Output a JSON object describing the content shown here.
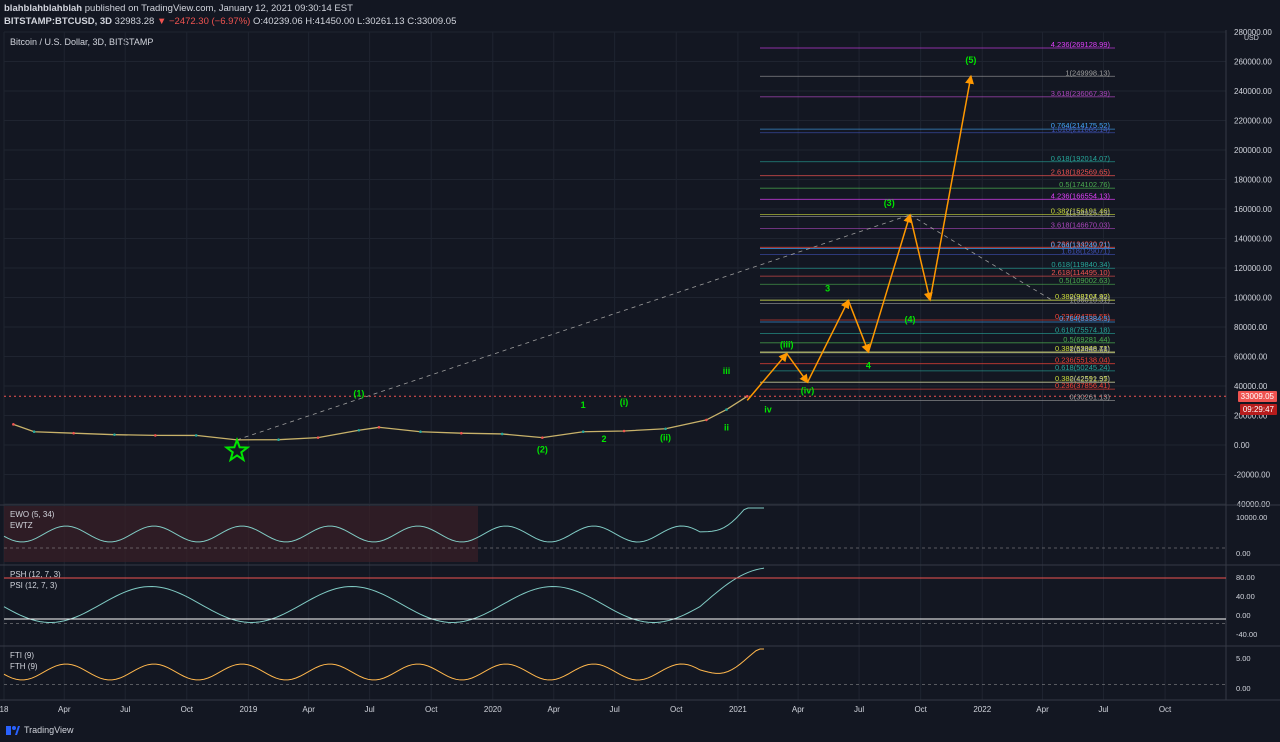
{
  "header": {
    "publisher": "blahblahblahblah",
    "published": "published on TradingView.com, January 12, 2021 09:30:14 EST",
    "symbol": "BITSTAMP:BTCUSD, 3D",
    "last": "32983.28",
    "change": "−2472.30 (−6.97%)",
    "o": "40239.06",
    "h": "41450.00",
    "l": "30261.13",
    "c": "33009.05"
  },
  "chart_title": "Bitcoin / U.S. Dollar, 3D, BITSTAMP",
  "currency": "USD",
  "price_tag": "33009.05",
  "time_tag": "09:29:47",
  "brand": "TradingView",
  "colors": {
    "bg": "#131722",
    "grid": "#1f2430",
    "up": "#26a69a",
    "down": "#ef5350",
    "wave": "#00e600",
    "arrow": "#ff9800"
  },
  "panes": [
    {
      "labels": [
        "EWO (5, 34)",
        "EWTZ"
      ],
      "ticks": [
        "10000.00",
        "0.00"
      ]
    },
    {
      "labels": [
        "PSH (12, 7, 3)",
        "PSI (12, 7, 3)"
      ],
      "ticks": [
        "80.00",
        "40.00",
        "0.00",
        "-40.00"
      ]
    },
    {
      "labels": [
        "FTI (9)",
        "FTH (9)"
      ],
      "ticks": [
        "5.00",
        "0.00"
      ]
    }
  ],
  "chart_data": {
    "type": "line",
    "ylabel": "USD",
    "ylim": [
      -40000,
      280000
    ],
    "yticks": [
      -40000,
      -20000,
      0,
      20000,
      40000,
      60000,
      80000,
      100000,
      120000,
      140000,
      160000,
      180000,
      200000,
      220000,
      240000,
      260000,
      280000
    ],
    "ytick_labels": [
      "-40000.00",
      "-20000.00",
      "0.00",
      "20000.00",
      "40000.00",
      "60000.00",
      "80000.00",
      "100000.00",
      "120000.00",
      "140000.00",
      "160000.00",
      "180000.00",
      "200000.00",
      "220000.00",
      "240000.00",
      "260000.00",
      "280000.00"
    ],
    "xtick_labels": [
      "18",
      "Apr",
      "Jul",
      "Oct",
      "2019",
      "Apr",
      "Jul",
      "Oct",
      "2020",
      "Apr",
      "Jul",
      "Oct",
      "2021",
      "Apr",
      "Jul",
      "Oct",
      "2022",
      "Apr",
      "Jul",
      "Oct"
    ],
    "price": {
      "x": [
        "2018-01",
        "2018-02",
        "2018-04",
        "2018-06",
        "2018-08",
        "2018-10",
        "2018-12",
        "2019-02",
        "2019-04",
        "2019-06",
        "2019-07",
        "2019-09",
        "2019-11",
        "2020-01",
        "2020-03",
        "2020-05",
        "2020-07",
        "2020-09",
        "2020-11",
        "2020-12",
        "2021-01"
      ],
      "y": [
        14000,
        9000,
        8000,
        7000,
        6500,
        6500,
        3500,
        3600,
        5000,
        10000,
        12000,
        9000,
        8000,
        7500,
        5000,
        9000,
        9500,
        11000,
        17000,
        24000,
        33009
      ]
    },
    "forecast_path": {
      "x": [
        "2021-01",
        "2021-03",
        "2021-04",
        "2021-06",
        "2021-07",
        "2021-09",
        "2021-10",
        "2021-12"
      ],
      "y": [
        30261,
        62000,
        42512,
        98000,
        63080,
        156000,
        98207,
        250000
      ]
    },
    "fib_levels": [
      {
        "label": "4.236(269128.99)",
        "value": 269129,
        "color": "#e040fb"
      },
      {
        "label": "1(249998.13)",
        "value": 249998,
        "color": "#9e9e9e"
      },
      {
        "label": "3.618(236067.39)",
        "value": 236067,
        "color": "#ab47bc"
      },
      {
        "label": "0.764(214175.52)",
        "value": 214176,
        "color": "#42a5f5"
      },
      {
        "label": "1.618(211685.14)",
        "value": 211685,
        "color": "#3f51b5"
      },
      {
        "label": "0.618(192014.07)",
        "value": 192014,
        "color": "#26a69a"
      },
      {
        "label": "2.618(182569.65)",
        "value": 182570,
        "color": "#ef5350"
      },
      {
        "label": "0.5(174102.76)",
        "value": 174103,
        "color": "#4caf50"
      },
      {
        "label": "4.236(166554.13)",
        "value": 166554,
        "color": "#e040fb"
      },
      {
        "label": "0.382(156191.46)",
        "value": 156191,
        "color": "#cddc39"
      },
      {
        "label": "1(154925.13)",
        "value": 154925,
        "color": "#9e9e9e"
      },
      {
        "label": "3.618(146670.03)",
        "value": 146670,
        "color": "#ab47bc"
      },
      {
        "label": "0.236(134030.01)",
        "value": 134030,
        "color": "#f44336"
      },
      {
        "label": "0.764(133249.71)",
        "value": 133250,
        "color": "#42a5f5"
      },
      {
        "label": "1.618(129071)",
        "value": 129071,
        "color": "#3f51b5"
      },
      {
        "label": "0.618(119840.34)",
        "value": 119840,
        "color": "#26a69a"
      },
      {
        "label": "2.618(114495.10)",
        "value": 114495,
        "color": "#ef5350"
      },
      {
        "label": "0.5(109002.63)",
        "value": 109003,
        "color": "#4caf50"
      },
      {
        "label": "0(98207.40)",
        "value": 98207,
        "color": "#9e9e9e"
      },
      {
        "label": "0.382(98164.92)",
        "value": 98165,
        "color": "#cddc39"
      },
      {
        "label": "1(96010.31)",
        "value": 96010,
        "color": "#9e9e9e"
      },
      {
        "label": "0.236(84755.55)",
        "value": 84756,
        "color": "#f44336"
      },
      {
        "label": "0.764(83384.5)",
        "value": 83385,
        "color": "#42a5f5"
      },
      {
        "label": "0.618(75574.18)",
        "value": 75574,
        "color": "#26a69a"
      },
      {
        "label": "0.5(69281.44)",
        "value": 69281,
        "color": "#4caf50"
      },
      {
        "label": "0(63080.13)",
        "value": 63080,
        "color": "#9e9e9e"
      },
      {
        "label": "0.382(62948.71)",
        "value": 62949,
        "color": "#cddc39"
      },
      {
        "label": "1(62436.66)",
        "value": 62437,
        "color": "#9e9e9e"
      },
      {
        "label": "0.236(55138.04)",
        "value": 55138,
        "color": "#f44336"
      },
      {
        "label": "0.618(50245.24)",
        "value": 50245,
        "color": "#26a69a"
      },
      {
        "label": "0.382(42591.95)",
        "value": 42592,
        "color": "#cddc39"
      },
      {
        "label": "0(42512.57)",
        "value": 42513,
        "color": "#9e9e9e"
      },
      {
        "label": "0.236(37856.41)",
        "value": 37856,
        "color": "#f44336"
      },
      {
        "label": "0(30261.13)",
        "value": 30261,
        "color": "#9e9e9e"
      }
    ],
    "wave_labels": [
      {
        "text": "(1)",
        "x": "2019-06",
        "y": 33000
      },
      {
        "text": "(2)",
        "x": "2020-03",
        "y": -5000
      },
      {
        "text": "1",
        "x": "2020-05",
        "y": 25000
      },
      {
        "text": "2",
        "x": "2020-06",
        "y": 2000
      },
      {
        "text": "(i)",
        "x": "2020-07",
        "y": 27000
      },
      {
        "text": "(ii)",
        "x": "2020-09",
        "y": 3000
      },
      {
        "text": "ii",
        "x": "2020-12",
        "y": 10000
      },
      {
        "text": "iii",
        "x": "2020-12",
        "y": 48000
      },
      {
        "text": "iv",
        "x": "2021-02",
        "y": 22000
      },
      {
        "text": "(iii)",
        "x": "2021-03",
        "y": 66000
      },
      {
        "text": "(iv)",
        "x": "2021-04",
        "y": 35000
      },
      {
        "text": "3",
        "x": "2021-05",
        "y": 104000
      },
      {
        "text": "4",
        "x": "2021-07",
        "y": 52000
      },
      {
        "text": "(3)",
        "x": "2021-08",
        "y": 162000
      },
      {
        "text": "(4)",
        "x": "2021-09",
        "y": 83000
      },
      {
        "text": "(5)",
        "x": "2021-12",
        "y": 259000
      }
    ]
  }
}
